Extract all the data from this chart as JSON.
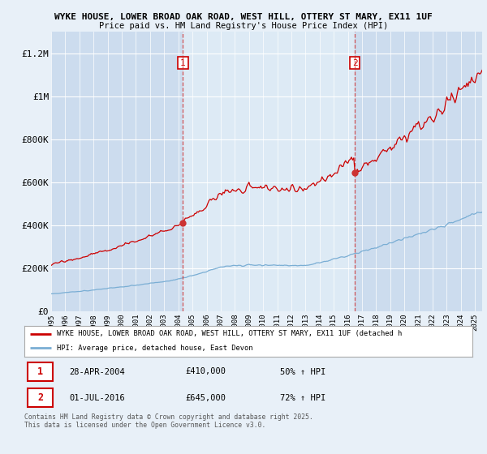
{
  "title_line1": "WYKE HOUSE, LOWER BROAD OAK ROAD, WEST HILL, OTTERY ST MARY, EX11 1UF",
  "title_line2": "Price paid vs. HM Land Registry's House Price Index (HPI)",
  "background_color": "#e8f0f8",
  "plot_bg_color": "#ccdcee",
  "highlight_bg_color": "#dde8f4",
  "ylim": [
    0,
    1300000
  ],
  "yticks": [
    0,
    200000,
    400000,
    600000,
    800000,
    1000000,
    1200000
  ],
  "ytick_labels": [
    "£0",
    "£200K",
    "£400K",
    "£600K",
    "£800K",
    "£1M",
    "£1.2M"
  ],
  "xstart_year": 1995,
  "xend_year": 2025,
  "purchase1_year": 2004.33,
  "purchase1_price": 410000,
  "purchase2_year": 2016.5,
  "purchase2_price": 645000,
  "legend_line1": "WYKE HOUSE, LOWER BROAD OAK ROAD, WEST HILL, OTTERY ST MARY, EX11 1UF (detached h",
  "legend_line2": "HPI: Average price, detached house, East Devon",
  "table_row1": [
    "1",
    "28-APR-2004",
    "£410,000",
    "50% ↑ HPI"
  ],
  "table_row2": [
    "2",
    "01-JUL-2016",
    "£645,000",
    "72% ↑ HPI"
  ],
  "footer": "Contains HM Land Registry data © Crown copyright and database right 2025.\nThis data is licensed under the Open Government Licence v3.0.",
  "line_color_red": "#cc0000",
  "line_color_blue": "#7aaed4",
  "purchase_marker_color": "#cc3333"
}
